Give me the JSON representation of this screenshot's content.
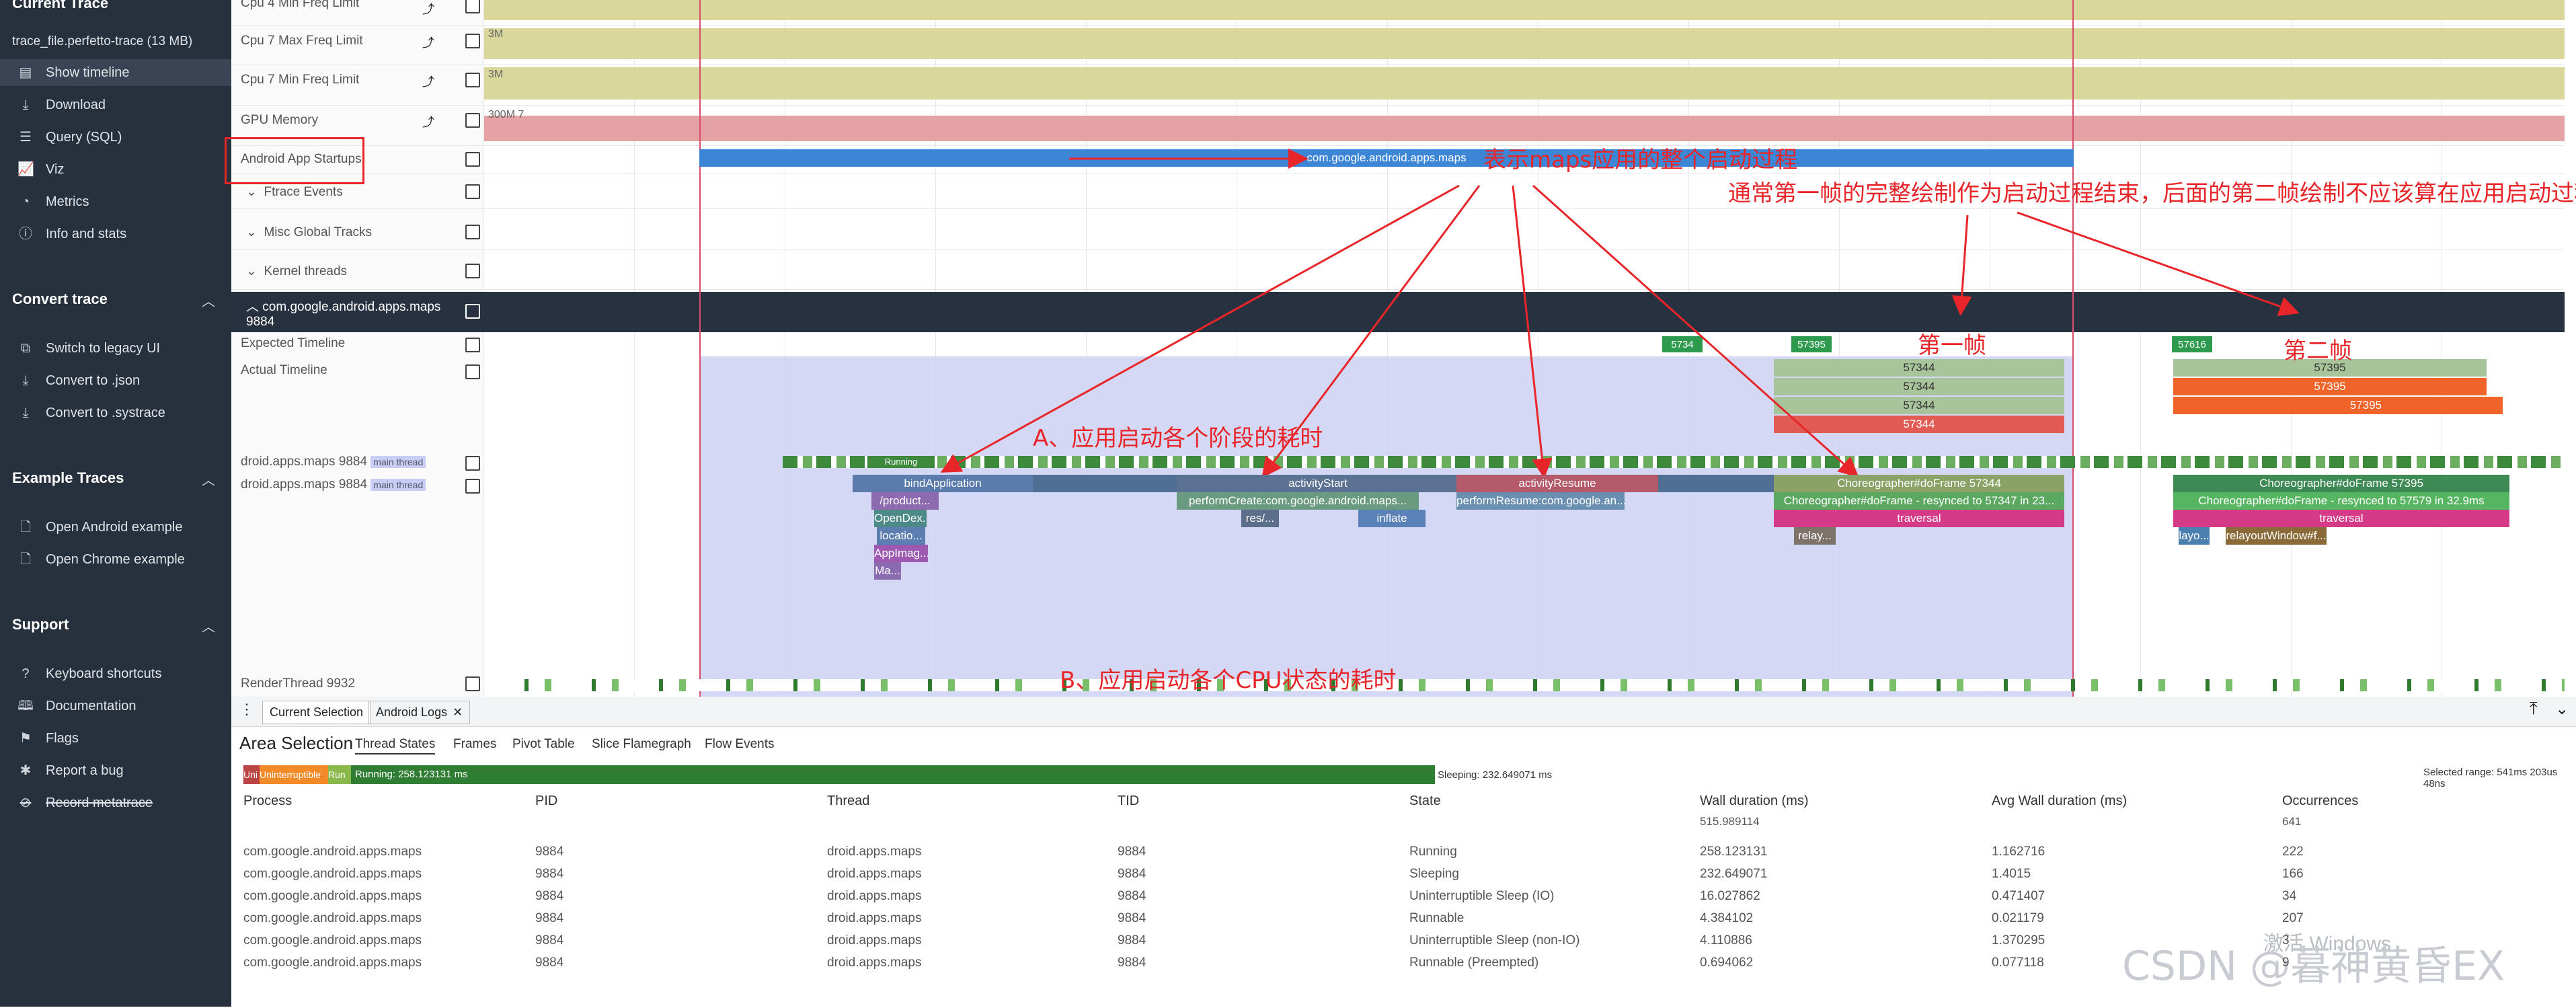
{
  "sidebar": {
    "current_trace": "Current Trace",
    "trace_file": "trace_file.perfetto-trace (13 MB)",
    "trace_items": [
      {
        "label": "Show timeline",
        "icon": "timeline-icon"
      },
      {
        "label": "Download",
        "icon": "download-icon"
      },
      {
        "label": "Query (SQL)",
        "icon": "database-icon"
      },
      {
        "label": "Viz",
        "icon": "chart-icon"
      },
      {
        "label": "Metrics",
        "icon": "metrics-icon"
      },
      {
        "label": "Info and stats",
        "icon": "info-icon"
      }
    ],
    "convert_trace": "Convert trace",
    "convert_items": [
      {
        "label": "Switch to legacy UI",
        "icon": "legacy-icon"
      },
      {
        "label": "Convert to .json",
        "icon": "download-icon"
      },
      {
        "label": "Convert to .systrace",
        "icon": "download-icon"
      }
    ],
    "example_traces": "Example Traces",
    "example_items": [
      {
        "label": "Open Android example",
        "icon": "file-icon"
      },
      {
        "label": "Open Chrome example",
        "icon": "file-icon"
      }
    ],
    "support": "Support",
    "support_items": [
      {
        "label": "Keyboard shortcuts",
        "icon": "help-icon"
      },
      {
        "label": "Documentation",
        "icon": "book-icon"
      },
      {
        "label": "Flags",
        "icon": "flag-icon"
      },
      {
        "label": "Report a bug",
        "icon": "bug-icon"
      },
      {
        "label": "Record metatrace",
        "icon": "record-icon"
      }
    ]
  },
  "tracks": {
    "cpu4_min": "Cpu 4 Min Freq Limit",
    "cpu7_max": "Cpu 7 Max Freq Limit",
    "cpu7_min": "Cpu 7 Min Freq Limit",
    "gpu_memory": "GPU Memory",
    "startups": "Android App Startups",
    "ftrace": "Ftrace Events",
    "misc": "Misc Global Tracks",
    "kernel": "Kernel threads",
    "process_header": "com.google.android.apps.maps 9884",
    "expected": "Expected Timeline",
    "actual": "Actual Timeline",
    "thread1": "droid.apps.maps 9884",
    "main_thread": "main thread",
    "thread2": "droid.apps.maps 9884",
    "render_thread": "RenderThread 9932",
    "cpu_3m": "3M",
    "cpu_3m_b": "3M",
    "gpu_300m": "300M 7"
  },
  "slices": {
    "startup": "com.google.android.apps.maps",
    "bind_application": "bindApplication",
    "activity_start": "activityStart",
    "activity_resume": "activityResume",
    "perform_create": "performCreate:com.google.android.maps...",
    "perform_resume": "performResume:com.google.an...",
    "product": "/product...",
    "open_dex": "OpenDex...",
    "location": "locatio...",
    "app_imag": "AppImag...",
    "ma": "Ma...",
    "res": "res/...",
    "inflate": "inflate",
    "running": "Running",
    "choreographer1": "Choreographer#doFrame 57344",
    "resynced1": "Choreographer#doFrame - resynced to 57347 in 23...",
    "traversal1": "traversal",
    "relay": "relay...",
    "choreographer2": "Choreographer#doFrame 57395",
    "resynced2": "Choreographer#doFrame - resynced to 57579 in 32.9ms",
    "traversal2": "traversal",
    "relayout": "relayoutWindow#f...",
    "layo": "layo...",
    "frame_57344": "57344",
    "frame_57395": "57395",
    "frame_57616": "57616",
    "frame_5734x": "5734"
  },
  "annotations": {
    "startup_note": "表示maps应用的整个启动过程",
    "first_frame_note": "通常第一帧的完整绘制作为启动过程结束，后面的第二帧绘制不应该算在应用启动过程",
    "first_frame": "第一帧",
    "second_frame": "第二帧",
    "phase_note": "A、应用启动各个阶段的耗时",
    "cpu_note": "B、应用启动各个CPU状态的耗时"
  },
  "panel": {
    "tabs": [
      "Current Selection",
      "Android Logs"
    ],
    "title": "Area Selection",
    "subtabs": [
      "Thread States",
      "Frames",
      "Pivot Table",
      "Slice Flamegraph",
      "Flow Events"
    ],
    "bar_running": "Running: 258.123131 ms",
    "bar_sleeping": "Sleeping: 232.649071 ms",
    "bar_un": "Uni",
    "bar_unint": "Uninterruptible",
    "bar_run": "Run",
    "selected_range": "Selected range: 541ms 203us 48ns",
    "columns": [
      "Process",
      "PID",
      "Thread",
      "TID",
      "State",
      "Wall duration (ms)",
      "Avg Wall duration (ms)",
      "Occurrences"
    ],
    "totals": {
      "wall": "515.989114",
      "occ": "641"
    },
    "rows": [
      {
        "process": "com.google.android.apps.maps",
        "pid": "9884",
        "thread": "droid.apps.maps",
        "tid": "9884",
        "state": "Running",
        "wall": "258.123131",
        "avg": "1.162716",
        "occ": "222"
      },
      {
        "process": "com.google.android.apps.maps",
        "pid": "9884",
        "thread": "droid.apps.maps",
        "tid": "9884",
        "state": "Sleeping",
        "wall": "232.649071",
        "avg": "1.4015",
        "occ": "166"
      },
      {
        "process": "com.google.android.apps.maps",
        "pid": "9884",
        "thread": "droid.apps.maps",
        "tid": "9884",
        "state": "Uninterruptible Sleep (IO)",
        "wall": "16.027862",
        "avg": "0.471407",
        "occ": "34"
      },
      {
        "process": "com.google.android.apps.maps",
        "pid": "9884",
        "thread": "droid.apps.maps",
        "tid": "9884",
        "state": "Runnable",
        "wall": "4.384102",
        "avg": "0.021179",
        "occ": "207"
      },
      {
        "process": "com.google.android.apps.maps",
        "pid": "9884",
        "thread": "droid.apps.maps",
        "tid": "9884",
        "state": "Uninterruptible Sleep (non-IO)",
        "wall": "4.110886",
        "avg": "1.370295",
        "occ": "3"
      },
      {
        "process": "com.google.android.apps.maps",
        "pid": "9884",
        "thread": "droid.apps.maps",
        "tid": "9884",
        "state": "Runnable (Preempted)",
        "wall": "0.694062",
        "avg": "0.077118",
        "occ": "9"
      }
    ]
  },
  "watermark": {
    "windows": "激活 Windows",
    "csdn": "CSDN @暮神黄昏EX"
  },
  "colors": {
    "sidebar": "#27303d",
    "accent_red": "#e8262a",
    "startup_blue": "#3d86d6",
    "selection": "#c9cdf2"
  }
}
